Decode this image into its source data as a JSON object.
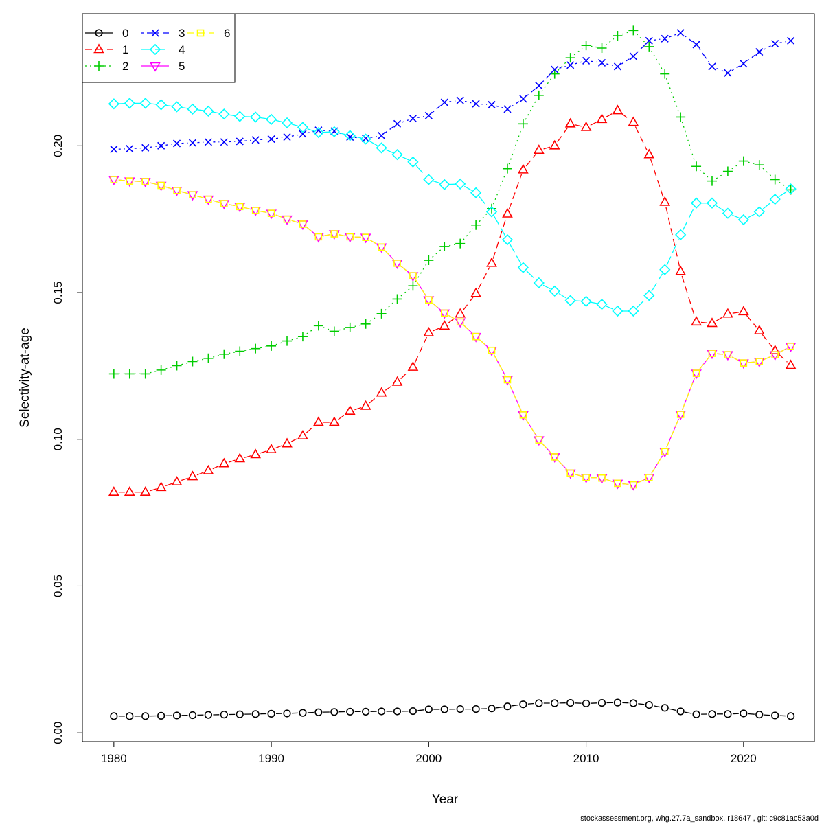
{
  "chart_data": {
    "type": "line",
    "title": "",
    "xlabel": "Year",
    "ylabel": "Selectivity-at-age",
    "xlim": [
      1978,
      2024.5
    ],
    "ylim": [
      -0.003,
      0.245
    ],
    "xticks": [
      1980,
      1990,
      2000,
      2010,
      2020
    ],
    "yticks": [
      0.0,
      0.05,
      0.1,
      0.15,
      0.2
    ],
    "ytick_labels": [
      "0.00",
      "0.05",
      "0.10",
      "0.15",
      "0.20"
    ],
    "grid": false,
    "legend_position": "top-left",
    "x": [
      1980,
      1981,
      1982,
      1983,
      1984,
      1985,
      1986,
      1987,
      1988,
      1989,
      1990,
      1991,
      1992,
      1993,
      1994,
      1995,
      1996,
      1997,
      1998,
      1999,
      2000,
      2001,
      2002,
      2003,
      2004,
      2005,
      2006,
      2007,
      2008,
      2009,
      2010,
      2011,
      2012,
      2013,
      2014,
      2015,
      2016,
      2017,
      2018,
      2019,
      2020,
      2021,
      2022,
      2023
    ],
    "series": [
      {
        "name": "0",
        "color": "#000000",
        "marker": "circle",
        "dash": "",
        "values": [
          0.0057,
          0.0057,
          0.0057,
          0.0058,
          0.0059,
          0.006,
          0.0061,
          0.0062,
          0.0063,
          0.0064,
          0.0065,
          0.0066,
          0.0068,
          0.007,
          0.0071,
          0.0072,
          0.0072,
          0.0073,
          0.0073,
          0.0074,
          0.008,
          0.008,
          0.0081,
          0.0081,
          0.0083,
          0.009,
          0.0097,
          0.0101,
          0.0101,
          0.0102,
          0.01,
          0.0102,
          0.0103,
          0.0101,
          0.0095,
          0.0085,
          0.0073,
          0.0063,
          0.0064,
          0.0064,
          0.0066,
          0.0062,
          0.0059,
          0.0057
        ]
      },
      {
        "name": "1",
        "color": "#ff0000",
        "marker": "triangle-up",
        "dash": "10,6",
        "values": [
          0.082,
          0.082,
          0.082,
          0.0836,
          0.0855,
          0.0873,
          0.0893,
          0.0917,
          0.0934,
          0.0948,
          0.0965,
          0.0985,
          0.1012,
          0.1058,
          0.1058,
          0.1096,
          0.1113,
          0.1158,
          0.1195,
          0.1246,
          0.1363,
          0.1386,
          0.1427,
          0.1497,
          0.16,
          0.1768,
          0.1918,
          0.1985,
          0.2,
          0.2075,
          0.2063,
          0.209,
          0.212,
          0.208,
          0.197,
          0.1808,
          0.1572,
          0.14,
          0.1395,
          0.1427,
          0.1435,
          0.137,
          0.1302,
          0.1252
        ]
      },
      {
        "name": "2",
        "color": "#00cc00",
        "marker": "plus",
        "dash": "2,5",
        "values": [
          0.1223,
          0.1223,
          0.1223,
          0.1236,
          0.1251,
          0.1265,
          0.1276,
          0.129,
          0.13,
          0.1309,
          0.1318,
          0.1335,
          0.135,
          0.1387,
          0.1368,
          0.1381,
          0.1393,
          0.1428,
          0.1478,
          0.1523,
          0.161,
          0.1657,
          0.1667,
          0.173,
          0.1786,
          0.1922,
          0.2075,
          0.2172,
          0.2245,
          0.23,
          0.2342,
          0.2333,
          0.2375,
          0.2393,
          0.2338,
          0.2245,
          0.2098,
          0.193,
          0.188,
          0.1913,
          0.1948,
          0.1935,
          0.1885,
          0.185
        ]
      },
      {
        "name": "3",
        "color": "#0000ff",
        "marker": "cross",
        "dash": "3,5,10,5",
        "values": [
          0.1988,
          0.199,
          0.1993,
          0.2,
          0.2008,
          0.201,
          0.2013,
          0.2013,
          0.2015,
          0.202,
          0.2023,
          0.203,
          0.204,
          0.2053,
          0.205,
          0.203,
          0.2025,
          0.2035,
          0.2075,
          0.2093,
          0.2103,
          0.2148,
          0.2155,
          0.2143,
          0.214,
          0.2125,
          0.216,
          0.2205,
          0.226,
          0.2275,
          0.229,
          0.2283,
          0.227,
          0.2305,
          0.2358,
          0.2365,
          0.2385,
          0.2345,
          0.227,
          0.2248,
          0.228,
          0.232,
          0.2348,
          0.2358
        ]
      },
      {
        "name": "4",
        "color": "#00ffff",
        "marker": "diamond",
        "dash": "14,6",
        "values": [
          0.2143,
          0.2145,
          0.2145,
          0.214,
          0.2133,
          0.2125,
          0.2118,
          0.2108,
          0.21,
          0.2098,
          0.209,
          0.2078,
          0.2063,
          0.2045,
          0.2048,
          0.2035,
          0.2023,
          0.1993,
          0.197,
          0.1945,
          0.1885,
          0.1868,
          0.187,
          0.184,
          0.1775,
          0.168,
          0.1585,
          0.1533,
          0.1505,
          0.1473,
          0.147,
          0.146,
          0.1437,
          0.1437,
          0.149,
          0.1578,
          0.1697,
          0.1805,
          0.1805,
          0.177,
          0.1748,
          0.1775,
          0.1818,
          0.1853
        ]
      },
      {
        "name": "5",
        "color": "#ff00ff",
        "marker": "triangle-down",
        "dash": "",
        "values": [
          0.1885,
          0.188,
          0.1878,
          0.1865,
          0.1848,
          0.1833,
          0.1818,
          0.1803,
          0.1793,
          0.178,
          0.177,
          0.175,
          0.1733,
          0.169,
          0.17,
          0.169,
          0.1688,
          0.1655,
          0.16,
          0.1557,
          0.1475,
          0.143,
          0.14,
          0.135,
          0.1303,
          0.1203,
          0.1083,
          0.0998,
          0.094,
          0.0885,
          0.087,
          0.0868,
          0.085,
          0.0845,
          0.087,
          0.0958,
          0.1085,
          0.1225,
          0.1293,
          0.1288,
          0.126,
          0.1265,
          0.1288,
          0.1317
        ]
      },
      {
        "name": "6",
        "color": "#ffff00",
        "marker": "square",
        "dash": "10,6",
        "values": [
          0.1885,
          0.188,
          0.1878,
          0.1865,
          0.1848,
          0.1833,
          0.1818,
          0.1803,
          0.1793,
          0.178,
          0.177,
          0.175,
          0.1733,
          0.169,
          0.17,
          0.169,
          0.1688,
          0.1655,
          0.16,
          0.1557,
          0.1475,
          0.143,
          0.14,
          0.135,
          0.1303,
          0.1203,
          0.1083,
          0.0998,
          0.094,
          0.0885,
          0.087,
          0.0868,
          0.085,
          0.0845,
          0.087,
          0.0958,
          0.1085,
          0.1225,
          0.1293,
          0.1288,
          0.126,
          0.1265,
          0.1288,
          0.1317
        ]
      }
    ]
  },
  "footer": {
    "text": "stockassessment.org, whg.27.7a_sandbox, r18647 , git: c9c81ac53a0d"
  }
}
